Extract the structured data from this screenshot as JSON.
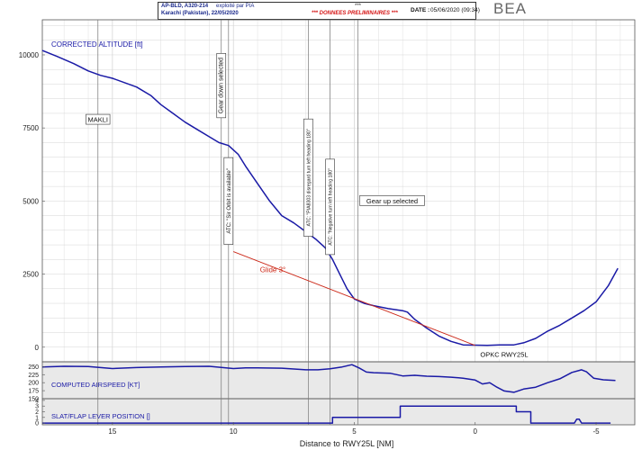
{
  "header": {
    "line1_aircraft": "AP-BLD, A320-214",
    "line1_operator": "exploité par PIA",
    "line2": "Karachi (Pakistan), 22/05/2020",
    "marker": "***",
    "prelim": "*** DONNEES PRELIMINAIRES ***",
    "date_label": "DATE :",
    "date_value": "05/06/2020 (09:34)",
    "logo": "BEA"
  },
  "chart_data": {
    "type": "line",
    "xlabel": "Distance to RWY25L [NM]",
    "x_range": [
      17.9,
      -6.6
    ],
    "x_ticks": [
      "15",
      "10",
      "5",
      "0",
      "-5"
    ],
    "x_tick_values": [
      15,
      10,
      5,
      0,
      -5
    ],
    "grid": true,
    "panels": [
      {
        "id": "altitude",
        "ylabel": "CORRECTED ALTITUDE [ft]",
        "ylim": [
          -500,
          11200
        ],
        "y_ticks": [
          "10000",
          "7500",
          "5000",
          "2500",
          "0"
        ],
        "y_tick_values": [
          10000,
          7500,
          5000,
          2500,
          0
        ],
        "series": [
          {
            "color": "#1a1aa6",
            "x": [
              17.9,
              17.3,
              16.6,
              16.0,
              15.5,
              15.0,
              14.0,
              13.4,
              13.0,
              12.5,
              12.0,
              11.5,
              11.0,
              10.6,
              10.2,
              9.8,
              9.5,
              9.0,
              8.5,
              8.0,
              7.5,
              7.0,
              6.6,
              6.2,
              5.9,
              5.6,
              5.3,
              5.0,
              4.6,
              4.2,
              3.6,
              3.0,
              2.8,
              2.5,
              2.0,
              1.5,
              1.0,
              0.5,
              0.0,
              -0.5,
              -1.0,
              -1.4,
              -1.6,
              -2.0,
              -2.5,
              -3.0,
              -3.5,
              -4.0,
              -4.5,
              -5.0,
              -5.5,
              -5.9
            ],
            "y": [
              10150,
              9950,
              9700,
              9450,
              9300,
              9200,
              8900,
              8600,
              8300,
              8000,
              7700,
              7450,
              7200,
              7000,
              6900,
              6600,
              6200,
              5600,
              5000,
              4500,
              4250,
              3950,
              3700,
              3400,
              3000,
              2500,
              2000,
              1650,
              1500,
              1420,
              1320,
              1250,
              1200,
              950,
              650,
              380,
              200,
              80,
              70,
              60,
              80,
              75,
              80,
              150,
              300,
              550,
              750,
              1000,
              1250,
              1550,
              2100,
              2700
            ]
          }
        ],
        "glide_line": {
          "label": "Glide 3°",
          "color": "#cc2a1a",
          "x": [
            10.0,
            0.0
          ],
          "y": [
            3270,
            60
          ]
        },
        "annotations": [
          {
            "text": "MAKLI",
            "x": 15.6,
            "orient": "horizontal",
            "y_label": 7780
          },
          {
            "text": "Gear down selected",
            "x": 10.5,
            "orient": "vertical",
            "y_label": 8950
          },
          {
            "text": "ATC: \"Sir Orbit is available\"",
            "x": 10.2,
            "orient": "vertical",
            "y_label": 5000
          },
          {
            "text": "ATC: \"PIA8303 disregard turn left heading 180\"",
            "x": 6.9,
            "orient": "vertical",
            "y_label": 5800
          },
          {
            "text": "ATC: \"Negative turn left heading 180\"",
            "x": 6.0,
            "orient": "vertical",
            "y_label": 4800
          },
          {
            "text": "Gear up selected",
            "x": 4.85,
            "orient": "horizontal",
            "y_label": 5000
          },
          {
            "text": "OPKC RWY25L",
            "x": -1.2,
            "orient": "horizontal",
            "y_label": -250
          }
        ]
      },
      {
        "id": "airspeed",
        "ylabel": "COMPUTED AIRSPEED [KT]",
        "ylim": [
          150,
          265
        ],
        "y_ticks": [
          "250",
          "225",
          "200",
          "175",
          "150"
        ],
        "y_tick_values": [
          250,
          225,
          200,
          175,
          150
        ],
        "series": [
          {
            "color": "#1a1aa6",
            "x": [
              17.9,
              17.0,
              16.0,
              15.0,
              14.0,
              13.0,
              12.0,
              11.0,
              10.0,
              9.5,
              9.0,
              8.0,
              7.0,
              6.5,
              6.0,
              5.5,
              5.1,
              4.8,
              4.5,
              4.2,
              3.5,
              3.0,
              2.5,
              2.0,
              1.5,
              1.0,
              0.5,
              0.0,
              -0.3,
              -0.6,
              -0.9,
              -1.2,
              -1.6,
              -2.0,
              -2.5,
              -3.0,
              -3.5,
              -4.0,
              -4.4,
              -4.6,
              -4.9,
              -5.3,
              -5.8
            ],
            "y": [
              249,
              251,
              250,
              244,
              247,
              249,
              250,
              251,
              244,
              246,
              246,
              245,
              240,
              240,
              243,
              249,
              256,
              246,
              233,
              231,
              229,
              221,
              223,
              220,
              219,
              217,
              214,
              208,
              196,
              200,
              186,
              174,
              170,
              180,
              186,
              200,
              212,
              232,
              240,
              234,
              214,
              209,
              207
            ]
          }
        ]
      },
      {
        "id": "slat_flap",
        "ylabel": "SLAT/FLAP LEVER POSITION []",
        "ylim": [
          -0.3,
          4.3
        ],
        "y_ticks": [
          "4",
          "3",
          "2",
          "1",
          "0"
        ],
        "y_tick_values": [
          4,
          3,
          2,
          1,
          0
        ],
        "series": [
          {
            "color": "#1a1aa6",
            "x": [
              17.9,
              5.9,
              5.9,
              3.1,
              3.1,
              -1.7,
              -1.7,
              -2.3,
              -2.3,
              -4.1,
              -4.2,
              -4.3,
              -4.4,
              -5.6
            ],
            "y": [
              0,
              0,
              1,
              1,
              3,
              3,
              2,
              2,
              0,
              0,
              0.7,
              0.7,
              0,
              0
            ]
          }
        ]
      }
    ]
  }
}
